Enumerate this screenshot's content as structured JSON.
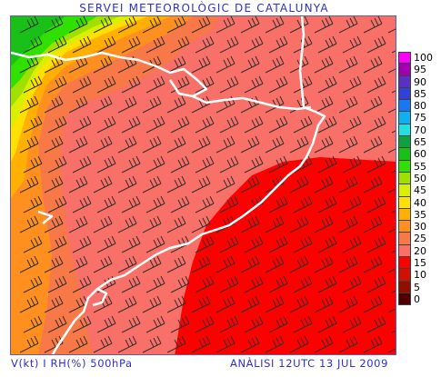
{
  "header": {
    "title": "SERVEI METEOROLÒGIC DE CATALUNYA"
  },
  "footer": {
    "variables": "V(kt) I RH(%) 500hPa",
    "analysis": "ANÀLISI 12UTC 13 JUL 2009"
  },
  "legend": {
    "unit": "RH(%)",
    "items": [
      {
        "label": "100",
        "color": "#ff00ff"
      },
      {
        "label": "95",
        "color": "#a000b0"
      },
      {
        "label": "90",
        "color": "#5a30c0"
      },
      {
        "label": "85",
        "color": "#3040d8"
      },
      {
        "label": "80",
        "color": "#1878f0"
      },
      {
        "label": "75",
        "color": "#10b0f0"
      },
      {
        "label": "70",
        "color": "#20e0e0"
      },
      {
        "label": "65",
        "color": "#10a040"
      },
      {
        "label": "60",
        "color": "#18c018"
      },
      {
        "label": "55",
        "color": "#30e000"
      },
      {
        "label": "50",
        "color": "#a0e000"
      },
      {
        "label": "45",
        "color": "#d8f000"
      },
      {
        "label": "40",
        "color": "#ffe000"
      },
      {
        "label": "35",
        "color": "#ffb000"
      },
      {
        "label": "30",
        "color": "#ff9020"
      },
      {
        "label": "25",
        "color": "#f87848"
      },
      {
        "label": "20",
        "color": "#f87068"
      },
      {
        "label": "15",
        "color": "#ff0000"
      },
      {
        "label": "10",
        "color": "#d01000"
      },
      {
        "label": "5",
        "color": "#901000"
      },
      {
        "label": "0",
        "color": "#500000"
      }
    ]
  },
  "map": {
    "field": "relative-humidity",
    "level": "500hPa",
    "wind_direction": "westerly",
    "region": "Catalunya"
  }
}
